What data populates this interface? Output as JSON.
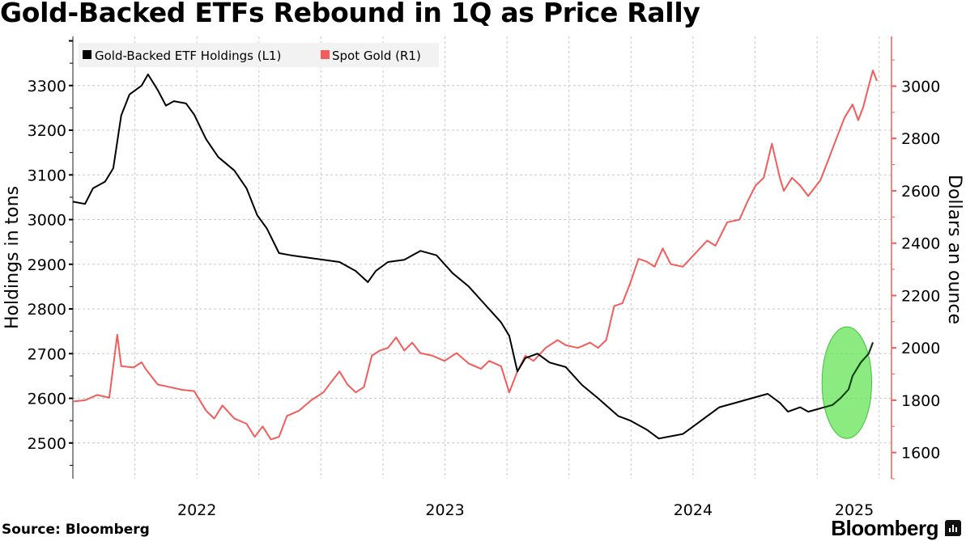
{
  "header": {
    "title": "Gold-Backed ETFs Rebound in 1Q as Price Rally"
  },
  "footer": {
    "source": "Source: Bloomberg",
    "brand": "Bloomberg",
    "brand_icon": "bloomberg-logo-icon"
  },
  "colors": {
    "holdings": "#000000",
    "spot_gold": "#f25c5c",
    "highlight": "#66e455",
    "highlight_stroke": "#3cc23a",
    "grid": "#c8c8c8",
    "legend_bg": "#f2f2f2"
  },
  "chart_data": {
    "type": "line",
    "title": "Gold-Backed ETFs Rebound in 1Q as Price Rally",
    "xlabel": "",
    "x_ticks": [
      {
        "label": "2022",
        "at": 2022.5
      },
      {
        "label": "2023",
        "at": 2023.5
      },
      {
        "label": "2024",
        "at": 2024.5
      },
      {
        "label": "2025",
        "at": 2025.15
      }
    ],
    "xlim": [
      2022.0,
      2025.3
    ],
    "grid": true,
    "legend": {
      "placement": "top-left",
      "entries": [
        {
          "label": "Gold-Backed ETF Holdings (L1)",
          "series": "holdings"
        },
        {
          "label": "Spot Gold (R1)",
          "series": "spot_gold"
        }
      ]
    },
    "axes": {
      "left": {
        "label": "Holdings in tons",
        "ylim": [
          2420,
          3410
        ],
        "ticks": [
          2500,
          2600,
          2700,
          2800,
          2900,
          3000,
          3100,
          3200,
          3300
        ]
      },
      "right": {
        "label": "Dollars an ounce",
        "ylim": [
          1500,
          3190
        ],
        "ticks": [
          1600,
          1800,
          2000,
          2200,
          2400,
          2600,
          2800,
          3000
        ]
      }
    },
    "annotation": {
      "type": "ellipse-highlight",
      "description": "Q1 2025 rebound in ETF holdings",
      "x_range": [
        2025.02,
        2025.22
      ],
      "y_range_left": [
        2510,
        2760
      ]
    },
    "series": [
      {
        "name": "Gold-Backed ETF Holdings (L1)",
        "key": "holdings",
        "axis": "left",
        "points": [
          [
            2022.0,
            3040
          ],
          [
            2022.049,
            3035
          ],
          [
            2022.081,
            3070
          ],
          [
            2022.13,
            3085
          ],
          [
            2022.163,
            3115
          ],
          [
            2022.195,
            3233
          ],
          [
            2022.228,
            3280
          ],
          [
            2022.277,
            3300
          ],
          [
            2022.303,
            3325
          ],
          [
            2022.342,
            3290
          ],
          [
            2022.375,
            3255
          ],
          [
            2022.407,
            3265
          ],
          [
            2022.456,
            3260
          ],
          [
            2022.489,
            3235
          ],
          [
            2022.537,
            3180
          ],
          [
            2022.586,
            3140
          ],
          [
            2022.651,
            3110
          ],
          [
            2022.7,
            3070
          ],
          [
            2022.743,
            3010
          ],
          [
            2022.782,
            2980
          ],
          [
            2022.831,
            2925
          ],
          [
            2022.879,
            2920
          ],
          [
            2022.945,
            2915
          ],
          [
            2023.01,
            2910
          ],
          [
            2023.075,
            2905
          ],
          [
            2023.14,
            2885
          ],
          [
            2023.189,
            2860
          ],
          [
            2023.221,
            2885
          ],
          [
            2023.27,
            2905
          ],
          [
            2023.336,
            2910
          ],
          [
            2023.401,
            2930
          ],
          [
            2023.466,
            2920
          ],
          [
            2023.531,
            2880
          ],
          [
            2023.596,
            2850
          ],
          [
            2023.661,
            2810
          ],
          [
            2023.726,
            2770
          ],
          [
            2023.759,
            2740
          ],
          [
            2023.792,
            2660
          ],
          [
            2023.824,
            2690
          ],
          [
            2023.873,
            2700
          ],
          [
            2023.922,
            2680
          ],
          [
            2023.987,
            2670
          ],
          [
            2024.052,
            2630
          ],
          [
            2024.117,
            2600
          ],
          [
            2024.199,
            2560
          ],
          [
            2024.248,
            2550
          ],
          [
            2024.313,
            2530
          ],
          [
            2024.362,
            2510
          ],
          [
            2024.41,
            2515
          ],
          [
            2024.459,
            2520
          ],
          [
            2024.508,
            2540
          ],
          [
            2024.557,
            2560
          ],
          [
            2024.606,
            2580
          ],
          [
            2024.671,
            2590
          ],
          [
            2024.736,
            2600
          ],
          [
            2024.801,
            2610
          ],
          [
            2024.85,
            2590
          ],
          [
            2024.883,
            2570
          ],
          [
            2024.932,
            2580
          ],
          [
            2024.964,
            2570
          ],
          [
            2024.997,
            2575
          ],
          [
            2025.029,
            2580
          ],
          [
            2025.062,
            2585
          ],
          [
            2025.094,
            2600
          ],
          [
            2025.127,
            2620
          ],
          [
            2025.143,
            2650
          ],
          [
            2025.176,
            2680
          ],
          [
            2025.208,
            2700
          ],
          [
            2025.225,
            2725
          ]
        ]
      },
      {
        "name": "Spot Gold (R1)",
        "key": "spot_gold",
        "axis": "right",
        "points": [
          [
            2022.0,
            1795
          ],
          [
            2022.049,
            1800
          ],
          [
            2022.098,
            1820
          ],
          [
            2022.147,
            1810
          ],
          [
            2022.179,
            2050
          ],
          [
            2022.195,
            1930
          ],
          [
            2022.244,
            1925
          ],
          [
            2022.277,
            1945
          ],
          [
            2022.293,
            1920
          ],
          [
            2022.342,
            1860
          ],
          [
            2022.391,
            1850
          ],
          [
            2022.44,
            1840
          ],
          [
            2022.489,
            1835
          ],
          [
            2022.505,
            1810
          ],
          [
            2022.537,
            1760
          ],
          [
            2022.57,
            1730
          ],
          [
            2022.603,
            1780
          ],
          [
            2022.651,
            1730
          ],
          [
            2022.7,
            1710
          ],
          [
            2022.733,
            1660
          ],
          [
            2022.765,
            1700
          ],
          [
            2022.798,
            1650
          ],
          [
            2022.831,
            1660
          ],
          [
            2022.863,
            1740
          ],
          [
            2022.912,
            1760
          ],
          [
            2022.961,
            1800
          ],
          [
            2023.01,
            1830
          ],
          [
            2023.042,
            1870
          ],
          [
            2023.075,
            1910
          ],
          [
            2023.107,
            1860
          ],
          [
            2023.14,
            1830
          ],
          [
            2023.173,
            1850
          ],
          [
            2023.205,
            1970
          ],
          [
            2023.238,
            1990
          ],
          [
            2023.27,
            2000
          ],
          [
            2023.303,
            2040
          ],
          [
            2023.336,
            1990
          ],
          [
            2023.368,
            2020
          ],
          [
            2023.401,
            1980
          ],
          [
            2023.45,
            1970
          ],
          [
            2023.498,
            1950
          ],
          [
            2023.547,
            1980
          ],
          [
            2023.596,
            1940
          ],
          [
            2023.645,
            1920
          ],
          [
            2023.678,
            1950
          ],
          [
            2023.726,
            1930
          ],
          [
            2023.759,
            1830
          ],
          [
            2023.792,
            1910
          ],
          [
            2023.824,
            1970
          ],
          [
            2023.857,
            1950
          ],
          [
            2023.906,
            2000
          ],
          [
            2023.954,
            2030
          ],
          [
            2023.987,
            2010
          ],
          [
            2024.036,
            2000
          ],
          [
            2024.085,
            2020
          ],
          [
            2024.117,
            2000
          ],
          [
            2024.15,
            2030
          ],
          [
            2024.182,
            2160
          ],
          [
            2024.215,
            2170
          ],
          [
            2024.248,
            2250
          ],
          [
            2024.28,
            2340
          ],
          [
            2024.313,
            2330
          ],
          [
            2024.345,
            2310
          ],
          [
            2024.378,
            2380
          ],
          [
            2024.41,
            2320
          ],
          [
            2024.459,
            2310
          ],
          [
            2024.508,
            2360
          ],
          [
            2024.557,
            2410
          ],
          [
            2024.59,
            2390
          ],
          [
            2024.638,
            2480
          ],
          [
            2024.687,
            2490
          ],
          [
            2024.72,
            2560
          ],
          [
            2024.752,
            2620
          ],
          [
            2024.785,
            2650
          ],
          [
            2024.818,
            2780
          ],
          [
            2024.85,
            2650
          ],
          [
            2024.866,
            2600
          ],
          [
            2024.899,
            2650
          ],
          [
            2024.932,
            2620
          ],
          [
            2024.964,
            2580
          ],
          [
            2025.013,
            2640
          ],
          [
            2025.046,
            2720
          ],
          [
            2025.078,
            2800
          ],
          [
            2025.111,
            2880
          ],
          [
            2025.143,
            2930
          ],
          [
            2025.166,
            2870
          ],
          [
            2025.186,
            2920
          ],
          [
            2025.208,
            3000
          ],
          [
            2025.225,
            3060
          ],
          [
            2025.241,
            3020
          ]
        ]
      }
    ]
  }
}
